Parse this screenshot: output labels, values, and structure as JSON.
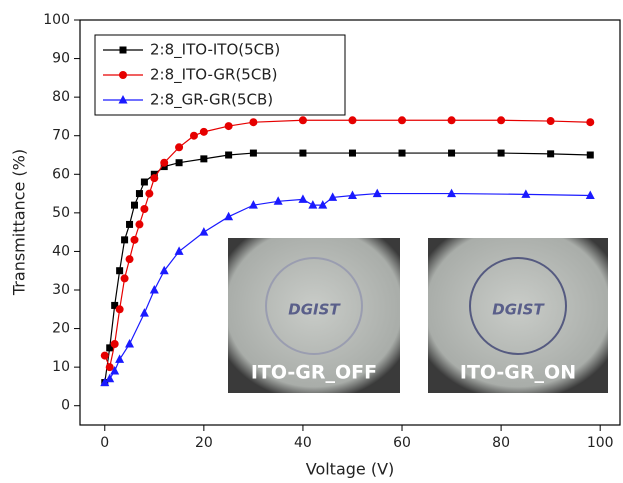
{
  "chart_data": {
    "type": "line",
    "x_label": "Voltage (V)",
    "y_label": "Transmittance (%)",
    "xlim": [
      -5,
      104
    ],
    "ylim": [
      -5,
      100
    ],
    "xticks": [
      0,
      20,
      40,
      60,
      80,
      100
    ],
    "yticks": [
      0,
      10,
      20,
      30,
      40,
      50,
      60,
      70,
      80,
      90,
      100
    ],
    "legend": "upper-left",
    "series": [
      {
        "name": "2:8_ITO-ITO(5CB)",
        "color": "#000000",
        "marker": "square",
        "x": [
          0,
          1,
          2,
          3,
          4,
          5,
          6,
          7,
          8,
          10,
          12,
          15,
          20,
          25,
          30,
          40,
          50,
          60,
          70,
          80,
          90,
          98
        ],
        "values": [
          6,
          15,
          26,
          35,
          43,
          47,
          52,
          55,
          58,
          60,
          62,
          63,
          64,
          65,
          65.5,
          65.5,
          65.5,
          65.5,
          65.5,
          65.5,
          65.3,
          65
        ]
      },
      {
        "name": "2:8_ITO-GR(5CB)",
        "color": "#e60000",
        "marker": "circle",
        "x": [
          0,
          1,
          2,
          3,
          4,
          5,
          6,
          7,
          8,
          9,
          10,
          12,
          15,
          18,
          20,
          25,
          30,
          40,
          50,
          60,
          70,
          80,
          90,
          98
        ],
        "values": [
          13,
          10,
          16,
          25,
          33,
          38,
          43,
          47,
          51,
          55,
          59,
          63,
          67,
          70,
          71,
          72.5,
          73.5,
          74,
          74,
          74,
          74,
          74,
          73.8,
          73.5
        ]
      },
      {
        "name": "2:8_GR-GR(5CB)",
        "color": "#1a1aff",
        "marker": "triangle",
        "x": [
          0,
          1,
          2,
          3,
          5,
          8,
          10,
          12,
          15,
          20,
          25,
          30,
          35,
          40,
          42,
          44,
          46,
          50,
          55,
          70,
          85,
          98
        ],
        "values": [
          6,
          7,
          9,
          12,
          16,
          24,
          30,
          35,
          40,
          45,
          49,
          52,
          53,
          53.5,
          52,
          52,
          54,
          54.5,
          55,
          55,
          54.8,
          54.5
        ]
      }
    ],
    "annotations": [
      "ITO-GR_OFF",
      "ITO-GR_ON"
    ],
    "photo_logos": [
      "DGIST",
      "DGIST"
    ]
  }
}
